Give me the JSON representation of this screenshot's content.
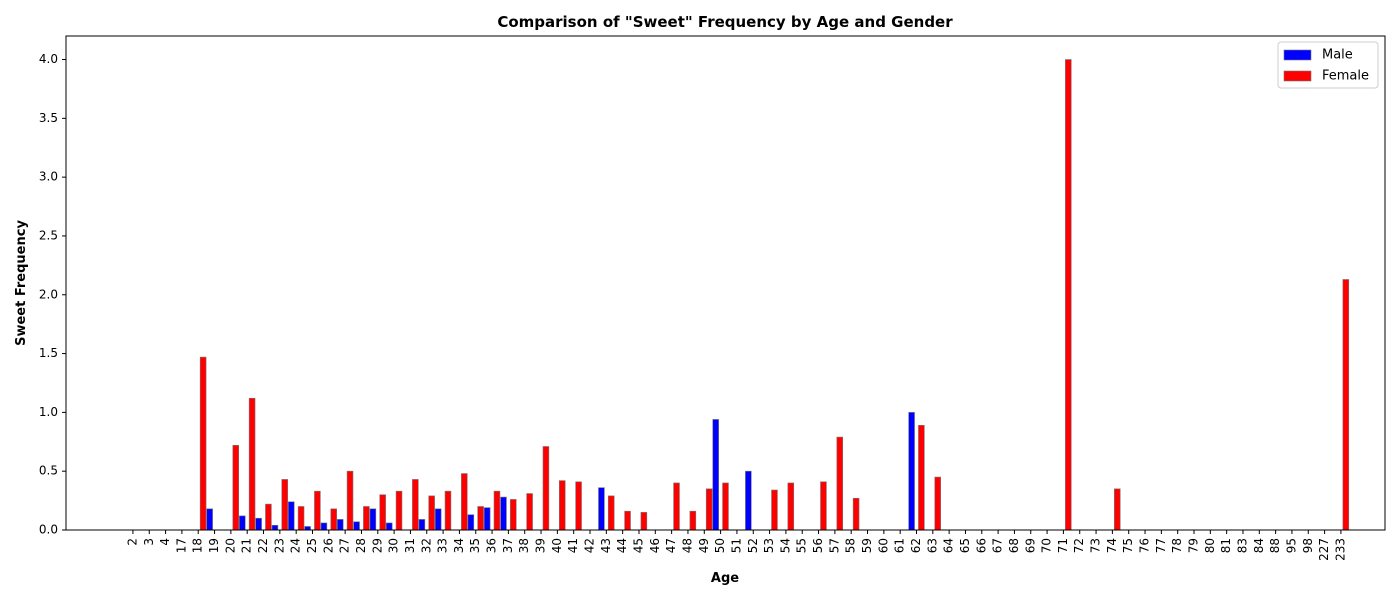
{
  "chart_data": {
    "type": "bar",
    "title": "Comparison of \"Sweet\" Frequency by Age and Gender",
    "xlabel": "Age",
    "ylabel": "Sweet Frequency",
    "ylim": [
      0,
      4.2
    ],
    "yticks": [
      "0.0",
      "0.5",
      "1.0",
      "1.5",
      "2.0",
      "2.5",
      "3.0",
      "3.5",
      "4.0"
    ],
    "legend_position": "top-right",
    "categories": [
      "2",
      "3",
      "4",
      "17",
      "18",
      "19",
      "20",
      "21",
      "22",
      "23",
      "24",
      "25",
      "26",
      "27",
      "28",
      "29",
      "30",
      "31",
      "32",
      "33",
      "34",
      "35",
      "36",
      "37",
      "38",
      "39",
      "40",
      "41",
      "42",
      "43",
      "44",
      "45",
      "46",
      "47",
      "48",
      "49",
      "50",
      "51",
      "52",
      "53",
      "54",
      "55",
      "56",
      "57",
      "58",
      "59",
      "60",
      "61",
      "62",
      "63",
      "64",
      "65",
      "66",
      "67",
      "68",
      "69",
      "70",
      "71",
      "72",
      "73",
      "74",
      "75",
      "76",
      "77",
      "78",
      "79",
      "80",
      "81",
      "83",
      "84",
      "88",
      "95",
      "98",
      "227",
      "233"
    ],
    "series": [
      {
        "name": "Male",
        "color": "#0000ff",
        "values": [
          0,
          0,
          0,
          0,
          0,
          0.18,
          0,
          0.12,
          0.1,
          0.04,
          0.24,
          0.03,
          0.06,
          0.09,
          0.07,
          0.18,
          0.06,
          0,
          0.09,
          0.18,
          0,
          0.13,
          0.19,
          0.28,
          0,
          0,
          0,
          0,
          0,
          0.36,
          0,
          0,
          0,
          0,
          0,
          0,
          0.94,
          0,
          0.5,
          0,
          0,
          0,
          0,
          0,
          0,
          0,
          0,
          0,
          1.0,
          0,
          0,
          0,
          0,
          0,
          0,
          0,
          0,
          0,
          0,
          0,
          0,
          0,
          0,
          0,
          0,
          0,
          0,
          0,
          0,
          0,
          0,
          0,
          0,
          0,
          0
        ]
      },
      {
        "name": "Female",
        "color": "#ff0000",
        "values": [
          0,
          0,
          0,
          0,
          1.47,
          0,
          0.72,
          1.12,
          0.22,
          0.43,
          0.2,
          0.33,
          0.18,
          0.5,
          0.2,
          0.3,
          0.33,
          0.43,
          0.29,
          0.33,
          0.48,
          0.2,
          0.33,
          0.26,
          0.31,
          0.71,
          0.42,
          0.41,
          0,
          0.29,
          0.16,
          0.15,
          0,
          0.4,
          0.16,
          0.35,
          0.4,
          0,
          0,
          0.34,
          0.4,
          0,
          0.41,
          0.79,
          0.27,
          0,
          0,
          0,
          0.89,
          0.45,
          0,
          0,
          0,
          0,
          0,
          0,
          0,
          4.0,
          0,
          0,
          0.35,
          0,
          0,
          0,
          0,
          0,
          0,
          0,
          0,
          0,
          0,
          0,
          0,
          0,
          2.13
        ]
      }
    ]
  }
}
